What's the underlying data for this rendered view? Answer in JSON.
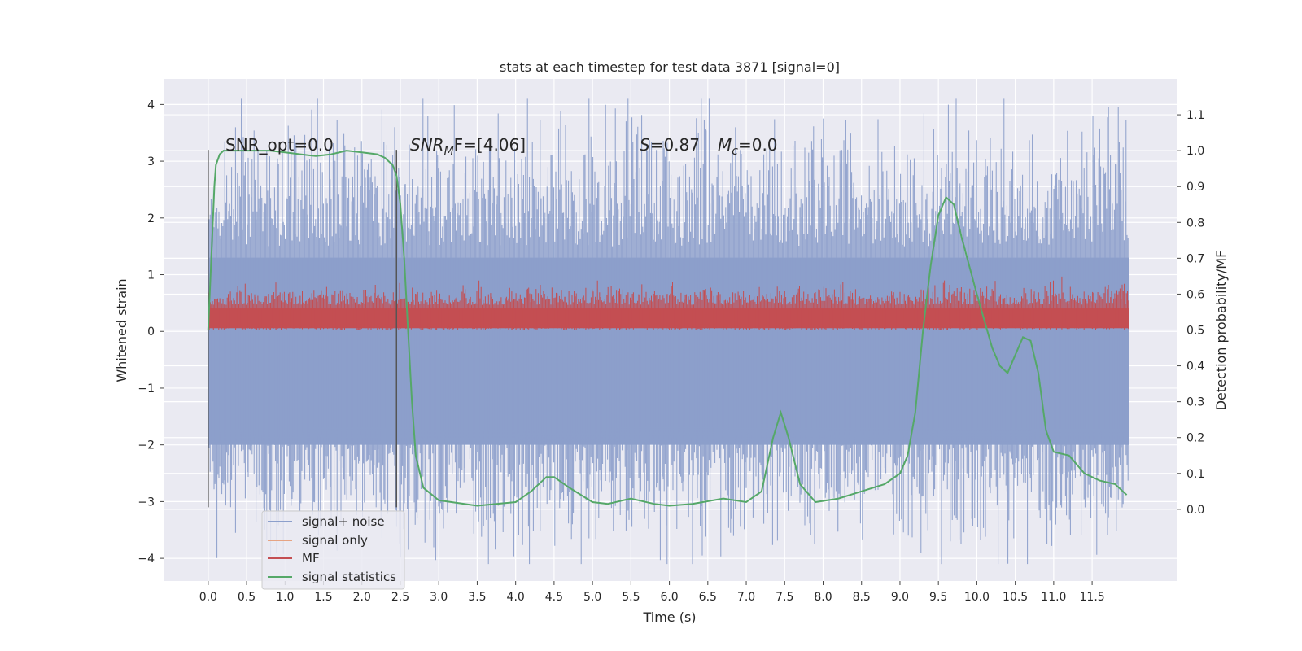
{
  "chart_data": {
    "type": "line",
    "title": "stats at each timestep for test data 3871 [signal=0]",
    "xlabel": "Time (s)",
    "ylabel_left": "Whitened strain",
    "ylabel_right": "Detection probability/MF",
    "xlim": [
      -0.57,
      12.6
    ],
    "ylim_left": [
      -4.4,
      4.45
    ],
    "ylim_right": [
      -0.2,
      1.2
    ],
    "x_ticks": [
      "0.0",
      "0.5",
      "1.0",
      "1.5",
      "2.0",
      "2.5",
      "3.0",
      "3.5",
      "4.0",
      "4.5",
      "5.0",
      "5.5",
      "6.0",
      "6.5",
      "7.0",
      "7.5",
      "8.0",
      "8.5",
      "9.0",
      "9.5",
      "10.0",
      "10.5",
      "11.0",
      "11.5"
    ],
    "y_ticks_left": [
      "−4",
      "−3",
      "−2",
      "−1",
      "0",
      "1",
      "2",
      "3",
      "4"
    ],
    "y_ticks_right": [
      "0.0",
      "0.1",
      "0.2",
      "0.3",
      "0.4",
      "0.5",
      "0.6",
      "0.7",
      "0.8",
      "0.9",
      "1.0",
      "1.1"
    ],
    "grid": true,
    "legend_position": "lower-left",
    "series": [
      {
        "name": "signal+ noise",
        "color": "#8c9fcb",
        "axis": "left",
        "style": "noise",
        "x_range": [
          0.0,
          11.98
        ],
        "amplitude_typical": 2.0,
        "amplitude_peak": 4.1
      },
      {
        "name": "signal only",
        "color": "#e6a483",
        "axis": "left",
        "values": []
      },
      {
        "name": "MF",
        "color": "#c44e52",
        "axis": "right",
        "style": "noise",
        "x_range": [
          0.0,
          11.98
        ],
        "baseline": 0.5,
        "peak": 0.65
      },
      {
        "name": "signal statistics",
        "color": "#55a868",
        "axis": "right",
        "x": [
          0.0,
          0.05,
          0.08,
          0.1,
          0.15,
          0.2,
          0.3,
          0.5,
          0.8,
          1.0,
          1.2,
          1.4,
          1.6,
          1.8,
          2.0,
          2.2,
          2.3,
          2.4,
          2.45,
          2.5,
          2.55,
          2.6,
          2.65,
          2.7,
          2.8,
          3.0,
          3.5,
          4.0,
          4.2,
          4.4,
          4.5,
          4.7,
          5.0,
          5.2,
          5.5,
          5.8,
          6.0,
          6.3,
          6.7,
          7.0,
          7.2,
          7.35,
          7.45,
          7.55,
          7.7,
          7.9,
          8.2,
          8.5,
          8.8,
          9.0,
          9.1,
          9.2,
          9.3,
          9.4,
          9.5,
          9.6,
          9.7,
          9.8,
          10.0,
          10.2,
          10.3,
          10.4,
          10.5,
          10.6,
          10.7,
          10.8,
          10.9,
          11.0,
          11.2,
          11.4,
          11.6,
          11.8,
          11.95
        ],
        "values": [
          0.5,
          0.75,
          0.9,
          0.96,
          0.99,
          1.0,
          1.0,
          1.0,
          1.0,
          0.995,
          0.99,
          0.985,
          0.99,
          1.0,
          0.995,
          0.99,
          0.98,
          0.96,
          0.93,
          0.85,
          0.7,
          0.5,
          0.3,
          0.15,
          0.06,
          0.025,
          0.01,
          0.02,
          0.05,
          0.09,
          0.09,
          0.06,
          0.02,
          0.015,
          0.03,
          0.015,
          0.01,
          0.015,
          0.03,
          0.02,
          0.05,
          0.2,
          0.27,
          0.2,
          0.07,
          0.02,
          0.03,
          0.05,
          0.07,
          0.1,
          0.15,
          0.27,
          0.5,
          0.68,
          0.82,
          0.87,
          0.85,
          0.76,
          0.6,
          0.45,
          0.4,
          0.38,
          0.43,
          0.48,
          0.47,
          0.38,
          0.22,
          0.16,
          0.15,
          0.1,
          0.08,
          0.07,
          0.04
        ]
      }
    ],
    "vertical_lines": [
      0.0,
      2.45
    ],
    "annotations": {
      "snr_opt": "SNR_opt=0.0",
      "snr_mf_label": "SNR",
      "snr_mf_sub": "M",
      "snr_mf_rest": "F=[4.06]",
      "s_label": "S",
      "s_value": "=0.87",
      "mc_label": "M",
      "mc_sub": "c",
      "mc_value": "=0.0"
    }
  }
}
